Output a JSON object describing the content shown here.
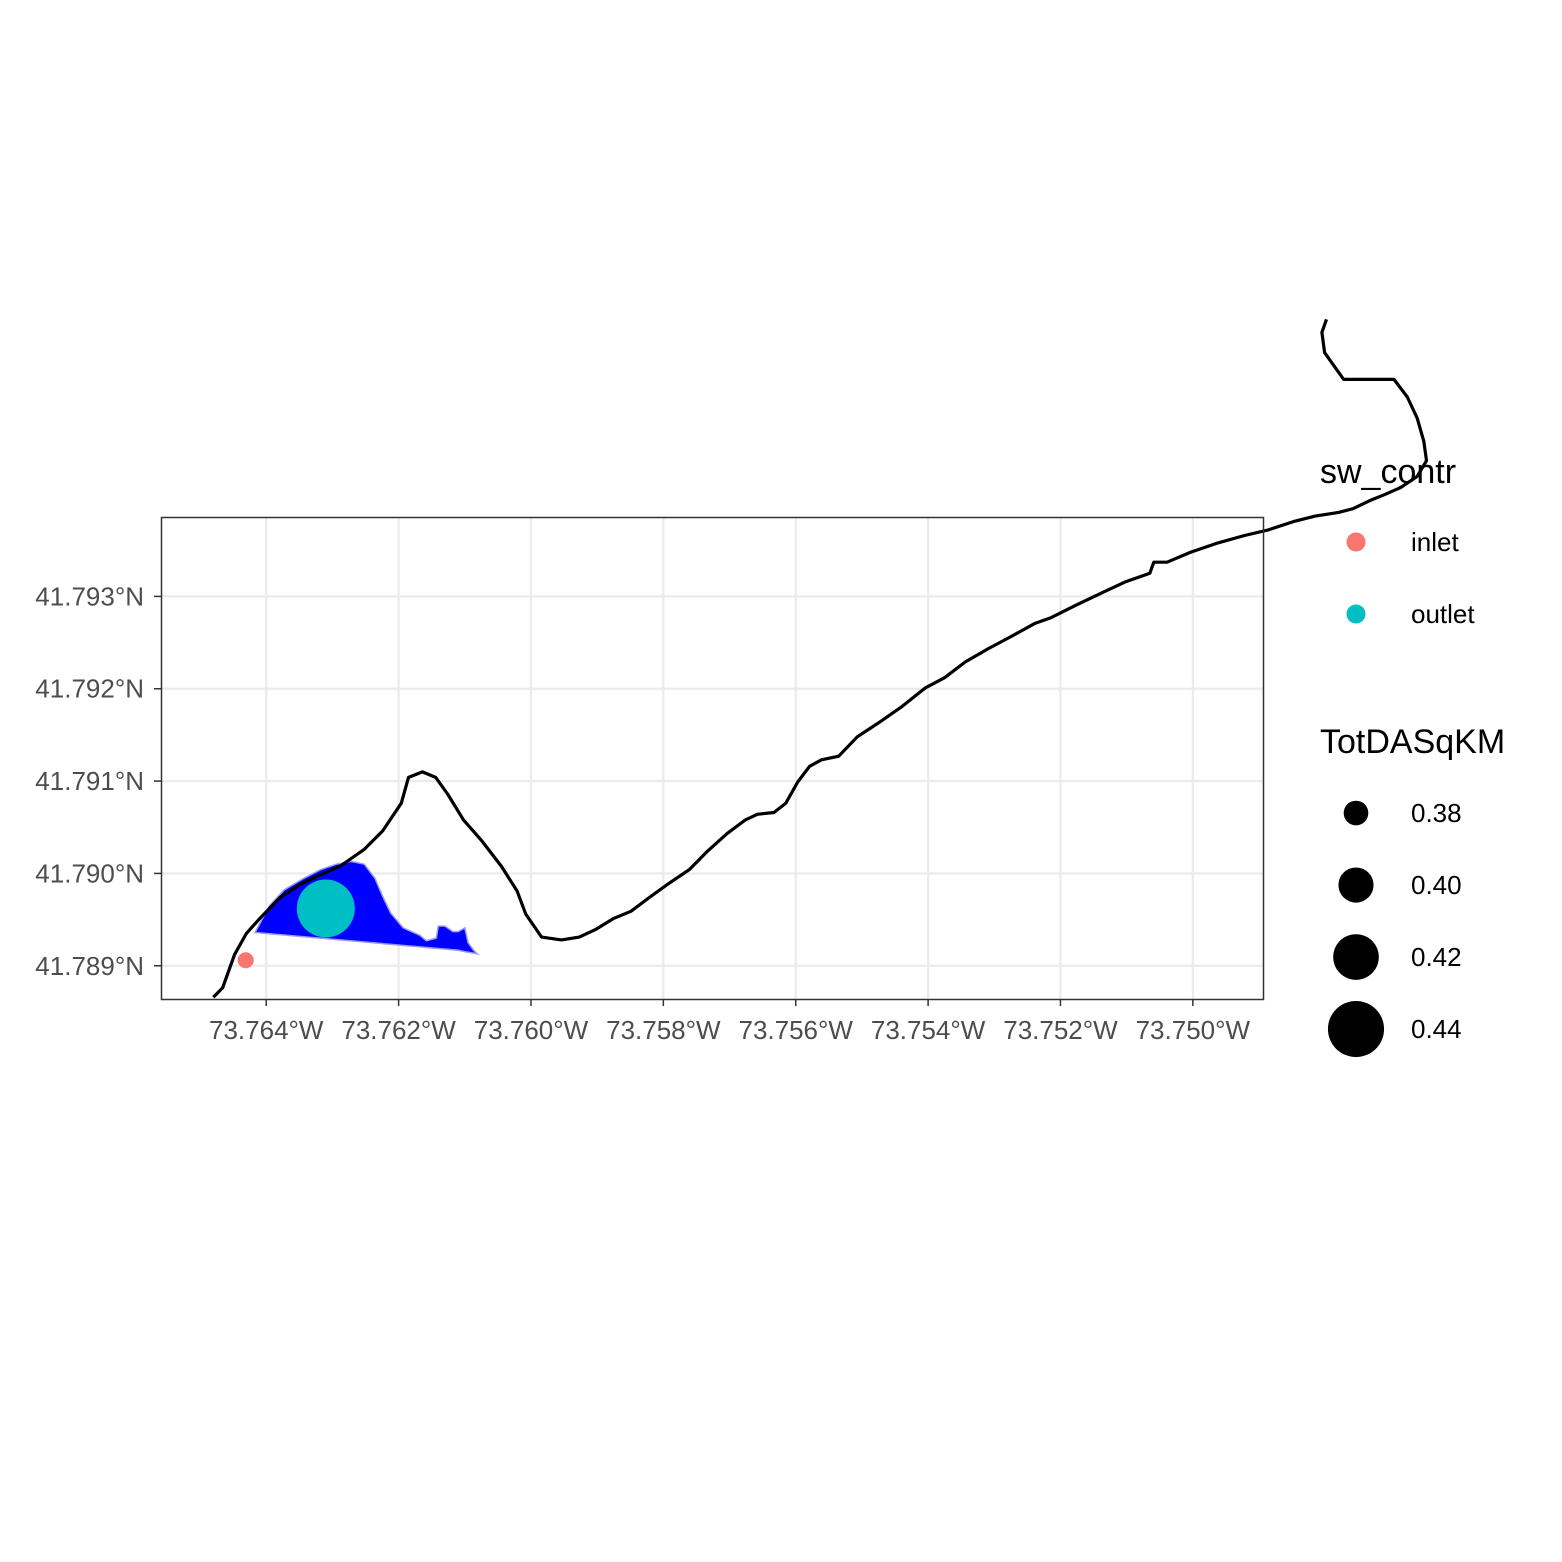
{
  "chart_data": {
    "type": "map",
    "x_ticks": [
      {
        "value": -73.764,
        "label": "73.764°W"
      },
      {
        "value": -73.762,
        "label": "73.762°W"
      },
      {
        "value": -73.76,
        "label": "73.760°W"
      },
      {
        "value": -73.758,
        "label": "73.758°W"
      },
      {
        "value": -73.756,
        "label": "73.756°W"
      },
      {
        "value": -73.754,
        "label": "73.754°W"
      },
      {
        "value": -73.752,
        "label": "73.752°W"
      },
      {
        "value": -73.75,
        "label": "73.750°W"
      }
    ],
    "y_ticks": [
      {
        "value": 41.789,
        "label": "41.789°N"
      },
      {
        "value": 41.79,
        "label": "41.790°N"
      },
      {
        "value": 41.791,
        "label": "41.791°N"
      },
      {
        "value": 41.792,
        "label": "41.792°N"
      },
      {
        "value": 41.793,
        "label": "41.793°N"
      }
    ],
    "xlim": [
      -73.76559,
      -73.74894
    ],
    "ylim": [
      41.78864,
      41.79386
    ],
    "grid": true,
    "legend_position": "right",
    "flowline": [
      [
        -73.7648,
        41.78866
      ],
      [
        -73.76466,
        41.78876
      ],
      [
        -73.76448,
        41.78912
      ],
      [
        -73.7643,
        41.78935
      ],
      [
        -73.7641,
        41.78951
      ],
      [
        -73.76379,
        41.78974
      ],
      [
        -73.76349,
        41.78988
      ],
      [
        -73.7632,
        41.78998
      ],
      [
        -73.76288,
        41.79008
      ],
      [
        -73.76252,
        41.79026
      ],
      [
        -73.76224,
        41.79046
      ],
      [
        -73.76196,
        41.79076
      ],
      [
        -73.76185,
        41.79104
      ],
      [
        -73.76164,
        41.7911
      ],
      [
        -73.76144,
        41.79104
      ],
      [
        -73.76126,
        41.79086
      ],
      [
        -73.76102,
        41.79058
      ],
      [
        -73.76074,
        41.79035
      ],
      [
        -73.76045,
        41.79008
      ],
      [
        -73.76021,
        41.78981
      ],
      [
        -73.76008,
        41.78956
      ],
      [
        -73.75984,
        41.78931
      ],
      [
        -73.75954,
        41.78928
      ],
      [
        -73.75927,
        41.78931
      ],
      [
        -73.75903,
        41.78939
      ],
      [
        -73.75876,
        41.78951
      ],
      [
        -73.75849,
        41.78959
      ],
      [
        -73.75821,
        41.78974
      ],
      [
        -73.75794,
        41.78988
      ],
      [
        -73.75761,
        41.79004
      ],
      [
        -73.75735,
        41.79023
      ],
      [
        -73.75704,
        41.79043
      ],
      [
        -73.75676,
        41.79058
      ],
      [
        -73.75658,
        41.79064
      ],
      [
        -73.75633,
        41.79066
      ],
      [
        -73.75615,
        41.79076
      ],
      [
        -73.75597,
        41.79099
      ],
      [
        -73.75579,
        41.79116
      ],
      [
        -73.75561,
        41.79123
      ],
      [
        -73.75535,
        41.79127
      ],
      [
        -73.75507,
        41.79148
      ],
      [
        -73.75473,
        41.79164
      ],
      [
        -73.75439,
        41.79181
      ],
      [
        -73.75404,
        41.79201
      ],
      [
        -73.75375,
        41.79212
      ],
      [
        -73.75344,
        41.79229
      ],
      [
        -73.7531,
        41.79243
      ],
      [
        -73.75276,
        41.79256
      ],
      [
        -73.75238,
        41.79271
      ],
      [
        -73.75214,
        41.79277
      ],
      [
        -73.75175,
        41.79291
      ],
      [
        -73.75137,
        41.79304
      ],
      [
        -73.75101,
        41.79316
      ],
      [
        -73.75065,
        41.79325
      ],
      [
        -73.75059,
        41.79337
      ],
      [
        -73.75039,
        41.79337
      ],
      [
        -73.75003,
        41.79348
      ],
      [
        -73.74962,
        41.79358
      ],
      [
        -73.74922,
        41.79366
      ],
      [
        -73.74886,
        41.79372
      ],
      [
        -73.74848,
        41.79381
      ],
      [
        -73.74815,
        41.79387
      ],
      [
        -73.7478,
        41.79391
      ],
      [
        -73.74758,
        41.79395
      ],
      [
        -73.74732,
        41.79404
      ],
      [
        -73.74711,
        41.7941
      ],
      [
        -73.74686,
        41.79418
      ],
      [
        -73.74661,
        41.7943
      ],
      [
        -73.74647,
        41.79447
      ],
      [
        -73.74651,
        41.79468
      ],
      [
        -73.74661,
        41.79493
      ],
      [
        -73.74676,
        41.79516
      ],
      [
        -73.74696,
        41.79535
      ],
      [
        -73.74743,
        41.79535
      ],
      [
        -73.74772,
        41.79535
      ],
      [
        -73.74787,
        41.7955
      ],
      [
        -73.74801,
        41.79564
      ],
      [
        -73.74805,
        41.79586
      ],
      [
        -73.74798,
        41.796
      ]
    ],
    "catchment_polygon": [
      [
        -73.76417,
        41.78936
      ],
      [
        -73.76395,
        41.78965
      ],
      [
        -73.76373,
        41.78982
      ],
      [
        -73.76345,
        41.78994
      ],
      [
        -73.76318,
        41.79004
      ],
      [
        -73.76294,
        41.7901
      ],
      [
        -73.76272,
        41.79013
      ],
      [
        -73.76252,
        41.7901
      ],
      [
        -73.76236,
        41.78995
      ],
      [
        -73.76224,
        41.78975
      ],
      [
        -73.76212,
        41.78957
      ],
      [
        -73.76193,
        41.78941
      ],
      [
        -73.76168,
        41.78933
      ],
      [
        -73.76158,
        41.78927
      ],
      [
        -73.76143,
        41.7893
      ],
      [
        -73.7614,
        41.78943
      ],
      [
        -73.7613,
        41.78943
      ],
      [
        -73.76118,
        41.78937
      ],
      [
        -73.7611,
        41.78937
      ],
      [
        -73.761,
        41.78941
      ],
      [
        -73.76095,
        41.78925
      ],
      [
        -73.76087,
        41.78917
      ],
      [
        -73.76081,
        41.78913
      ],
      [
        -73.76098,
        41.78915
      ],
      [
        -73.76111,
        41.78917
      ]
    ],
    "points": [
      {
        "category": "inlet",
        "TotDASqKM": 0.375,
        "lon": -73.76431,
        "lat": 41.78906
      },
      {
        "category": "outlet",
        "TotDASqKM": 0.455,
        "lon": -73.7631,
        "lat": 41.78962
      }
    ],
    "legends": [
      {
        "title": "sw_contr",
        "items": [
          {
            "label": "inlet",
            "color": "#F8766D"
          },
          {
            "label": "outlet",
            "color": "#00BFC4"
          }
        ]
      },
      {
        "title": "TotDASqKM",
        "items": [
          {
            "label": "0.38",
            "value": 0.38
          },
          {
            "label": "0.40",
            "value": 0.4
          },
          {
            "label": "0.42",
            "value": 0.42
          },
          {
            "label": "0.44",
            "value": 0.44
          }
        ]
      }
    ],
    "colors": {
      "catchment_fill": "#0000FF",
      "catchment_border": "#9999FF",
      "flowline": "#000000",
      "grid": "#EBEBEB",
      "panel_border": "#333333",
      "tick_text": "#4D4D4D"
    }
  }
}
